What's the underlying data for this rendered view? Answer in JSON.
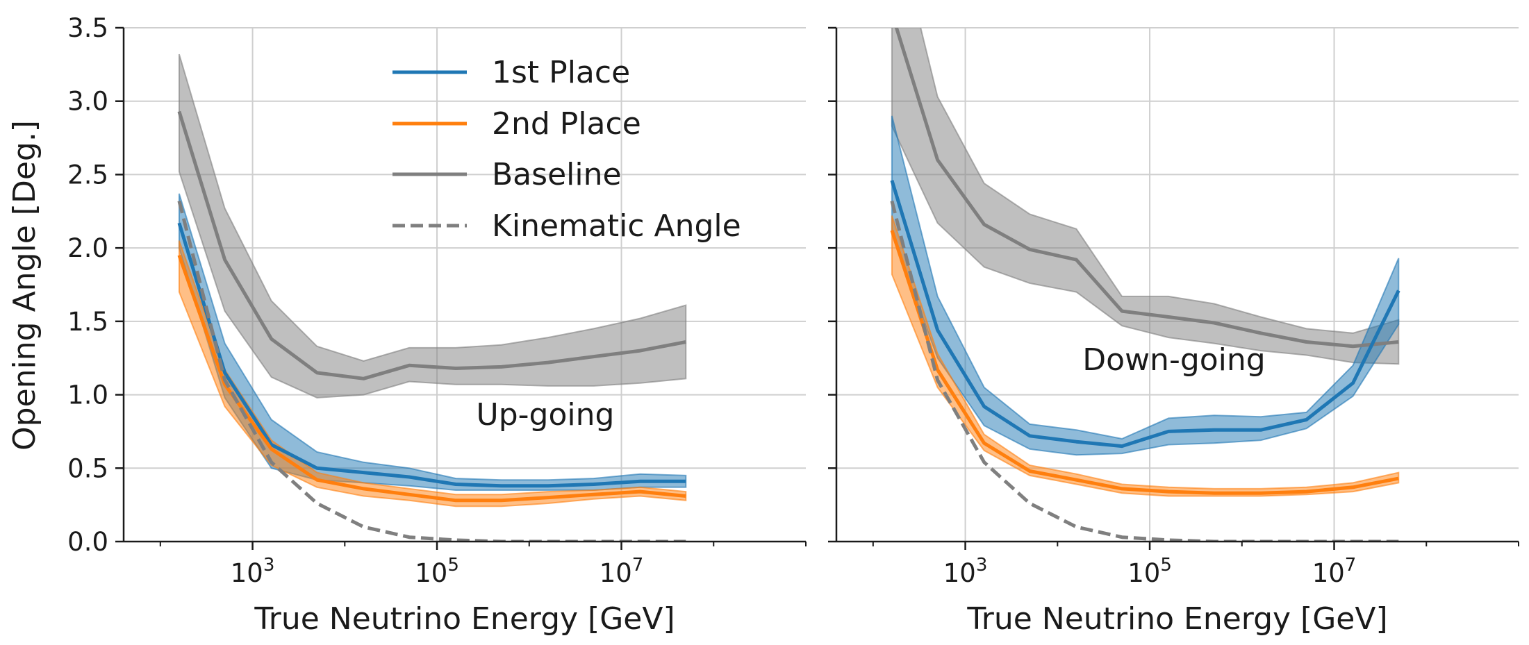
{
  "figure": {
    "ylabel": "Opening Angle [Deg.]",
    "legend": {
      "placement": "upper-center of left panel",
      "entries": [
        {
          "label": "1st Place",
          "color": "#1f77b4",
          "style": "solid"
        },
        {
          "label": "2nd Place",
          "color": "#ff7f0e",
          "style": "solid"
        },
        {
          "label": "Baseline",
          "color": "#7f7f7f",
          "style": "solid"
        },
        {
          "label": "Kinematic Angle",
          "color": "#7f7f7f",
          "style": "dashed"
        }
      ]
    }
  },
  "chart_data": [
    {
      "type": "line",
      "panel": "left",
      "annotation": "Up-going",
      "xlabel": "True Neutrino Energy [GeV]",
      "ylabel": "Opening Angle [Deg.]",
      "xscale": "log",
      "xlim": [
        40,
        1000000000
      ],
      "ylim": [
        0,
        3.5
      ],
      "xticks": [
        1000,
        100000,
        10000000
      ],
      "xtick_labels": [
        "10^3",
        "10^5",
        "10^7"
      ],
      "yticks": [
        0,
        0.5,
        1.0,
        1.5,
        2.0,
        2.5,
        3.0,
        3.5
      ],
      "ytick_labels": [
        "0.0",
        "0.5",
        "1.0",
        "1.5",
        "2.0",
        "2.5",
        "3.0",
        "3.5"
      ],
      "grid": true,
      "x": [
        160,
        500,
        1600,
        5000,
        16000,
        50000,
        160000,
        500000,
        1600000,
        5000000,
        16000000,
        50000000
      ],
      "series": [
        {
          "name": "1st Place",
          "color": "#1f77b4",
          "dashed": false,
          "values": [
            2.17,
            1.15,
            0.66,
            0.5,
            0.47,
            0.44,
            0.39,
            0.38,
            0.38,
            0.39,
            0.41,
            0.41
          ],
          "lower": [
            2.0,
            0.98,
            0.5,
            0.42,
            0.4,
            0.38,
            0.35,
            0.35,
            0.35,
            0.35,
            0.37,
            0.37
          ],
          "upper": [
            2.37,
            1.35,
            0.83,
            0.61,
            0.54,
            0.5,
            0.43,
            0.42,
            0.42,
            0.43,
            0.46,
            0.45
          ]
        },
        {
          "name": "2nd Place",
          "color": "#ff7f0e",
          "dashed": false,
          "values": [
            1.95,
            1.07,
            0.63,
            0.42,
            0.36,
            0.32,
            0.28,
            0.28,
            0.3,
            0.32,
            0.34,
            0.31
          ],
          "lower": [
            1.7,
            0.92,
            0.52,
            0.37,
            0.31,
            0.28,
            0.24,
            0.24,
            0.26,
            0.29,
            0.31,
            0.28
          ],
          "upper": [
            2.05,
            1.17,
            0.69,
            0.47,
            0.4,
            0.36,
            0.32,
            0.32,
            0.34,
            0.35,
            0.37,
            0.34
          ]
        },
        {
          "name": "Baseline",
          "color": "#7f7f7f",
          "dashed": false,
          "values": [
            2.93,
            1.92,
            1.38,
            1.15,
            1.11,
            1.2,
            1.18,
            1.19,
            1.22,
            1.26,
            1.3,
            1.36
          ],
          "lower": [
            2.52,
            1.57,
            1.12,
            0.98,
            1.0,
            1.09,
            1.07,
            1.07,
            1.06,
            1.06,
            1.08,
            1.11
          ],
          "upper": [
            3.32,
            2.27,
            1.64,
            1.33,
            1.23,
            1.32,
            1.32,
            1.34,
            1.39,
            1.45,
            1.52,
            1.61
          ]
        },
        {
          "name": "Kinematic Angle",
          "color": "#7f7f7f",
          "dashed": true,
          "values": [
            2.32,
            1.1,
            0.54,
            0.26,
            0.1,
            0.03,
            0.01,
            0.0,
            0.0,
            0.0,
            0.0,
            0.0
          ]
        }
      ]
    },
    {
      "type": "line",
      "panel": "right",
      "annotation": "Down-going",
      "xlabel": "True Neutrino Energy [GeV]",
      "xscale": "log",
      "xlim": [
        40,
        1000000000
      ],
      "ylim": [
        0,
        3.5
      ],
      "xticks": [
        1000,
        100000,
        10000000
      ],
      "xtick_labels": [
        "10^3",
        "10^5",
        "10^7"
      ],
      "grid": true,
      "x": [
        160,
        500,
        1600,
        5000,
        16000,
        50000,
        160000,
        500000,
        1600000,
        5000000,
        16000000,
        50000000
      ],
      "series": [
        {
          "name": "1st Place",
          "color": "#1f77b4",
          "dashed": false,
          "values": [
            2.46,
            1.44,
            0.92,
            0.72,
            0.68,
            0.65,
            0.75,
            0.76,
            0.76,
            0.83,
            1.08,
            1.71
          ],
          "lower": [
            2.1,
            1.25,
            0.79,
            0.63,
            0.59,
            0.6,
            0.66,
            0.67,
            0.69,
            0.77,
            0.99,
            1.48
          ],
          "upper": [
            2.9,
            1.67,
            1.05,
            0.8,
            0.76,
            0.7,
            0.84,
            0.86,
            0.85,
            0.88,
            1.2,
            1.93
          ]
        },
        {
          "name": "2nd Place",
          "color": "#ff7f0e",
          "dashed": false,
          "values": [
            2.12,
            1.17,
            0.67,
            0.48,
            0.42,
            0.36,
            0.34,
            0.33,
            0.33,
            0.34,
            0.37,
            0.43
          ],
          "lower": [
            1.82,
            1.05,
            0.62,
            0.45,
            0.39,
            0.33,
            0.31,
            0.31,
            0.31,
            0.32,
            0.34,
            0.4
          ],
          "upper": [
            2.22,
            1.28,
            0.73,
            0.52,
            0.46,
            0.39,
            0.37,
            0.36,
            0.36,
            0.37,
            0.4,
            0.47
          ]
        },
        {
          "name": "Baseline",
          "color": "#7f7f7f",
          "dashed": false,
          "values": [
            3.6,
            2.6,
            2.16,
            1.99,
            1.92,
            1.57,
            1.53,
            1.49,
            1.42,
            1.36,
            1.33,
            1.36
          ],
          "lower": [
            2.83,
            2.17,
            1.87,
            1.76,
            1.7,
            1.47,
            1.39,
            1.35,
            1.3,
            1.27,
            1.22,
            1.21
          ],
          "upper": [
            4.3,
            3.03,
            2.44,
            2.23,
            2.13,
            1.67,
            1.67,
            1.62,
            1.53,
            1.45,
            1.42,
            1.51
          ]
        },
        {
          "name": "Kinematic Angle",
          "color": "#7f7f7f",
          "dashed": true,
          "values": [
            2.32,
            1.1,
            0.54,
            0.26,
            0.1,
            0.03,
            0.01,
            0.0,
            0.0,
            0.0,
            0.0,
            0.0
          ]
        }
      ]
    }
  ]
}
